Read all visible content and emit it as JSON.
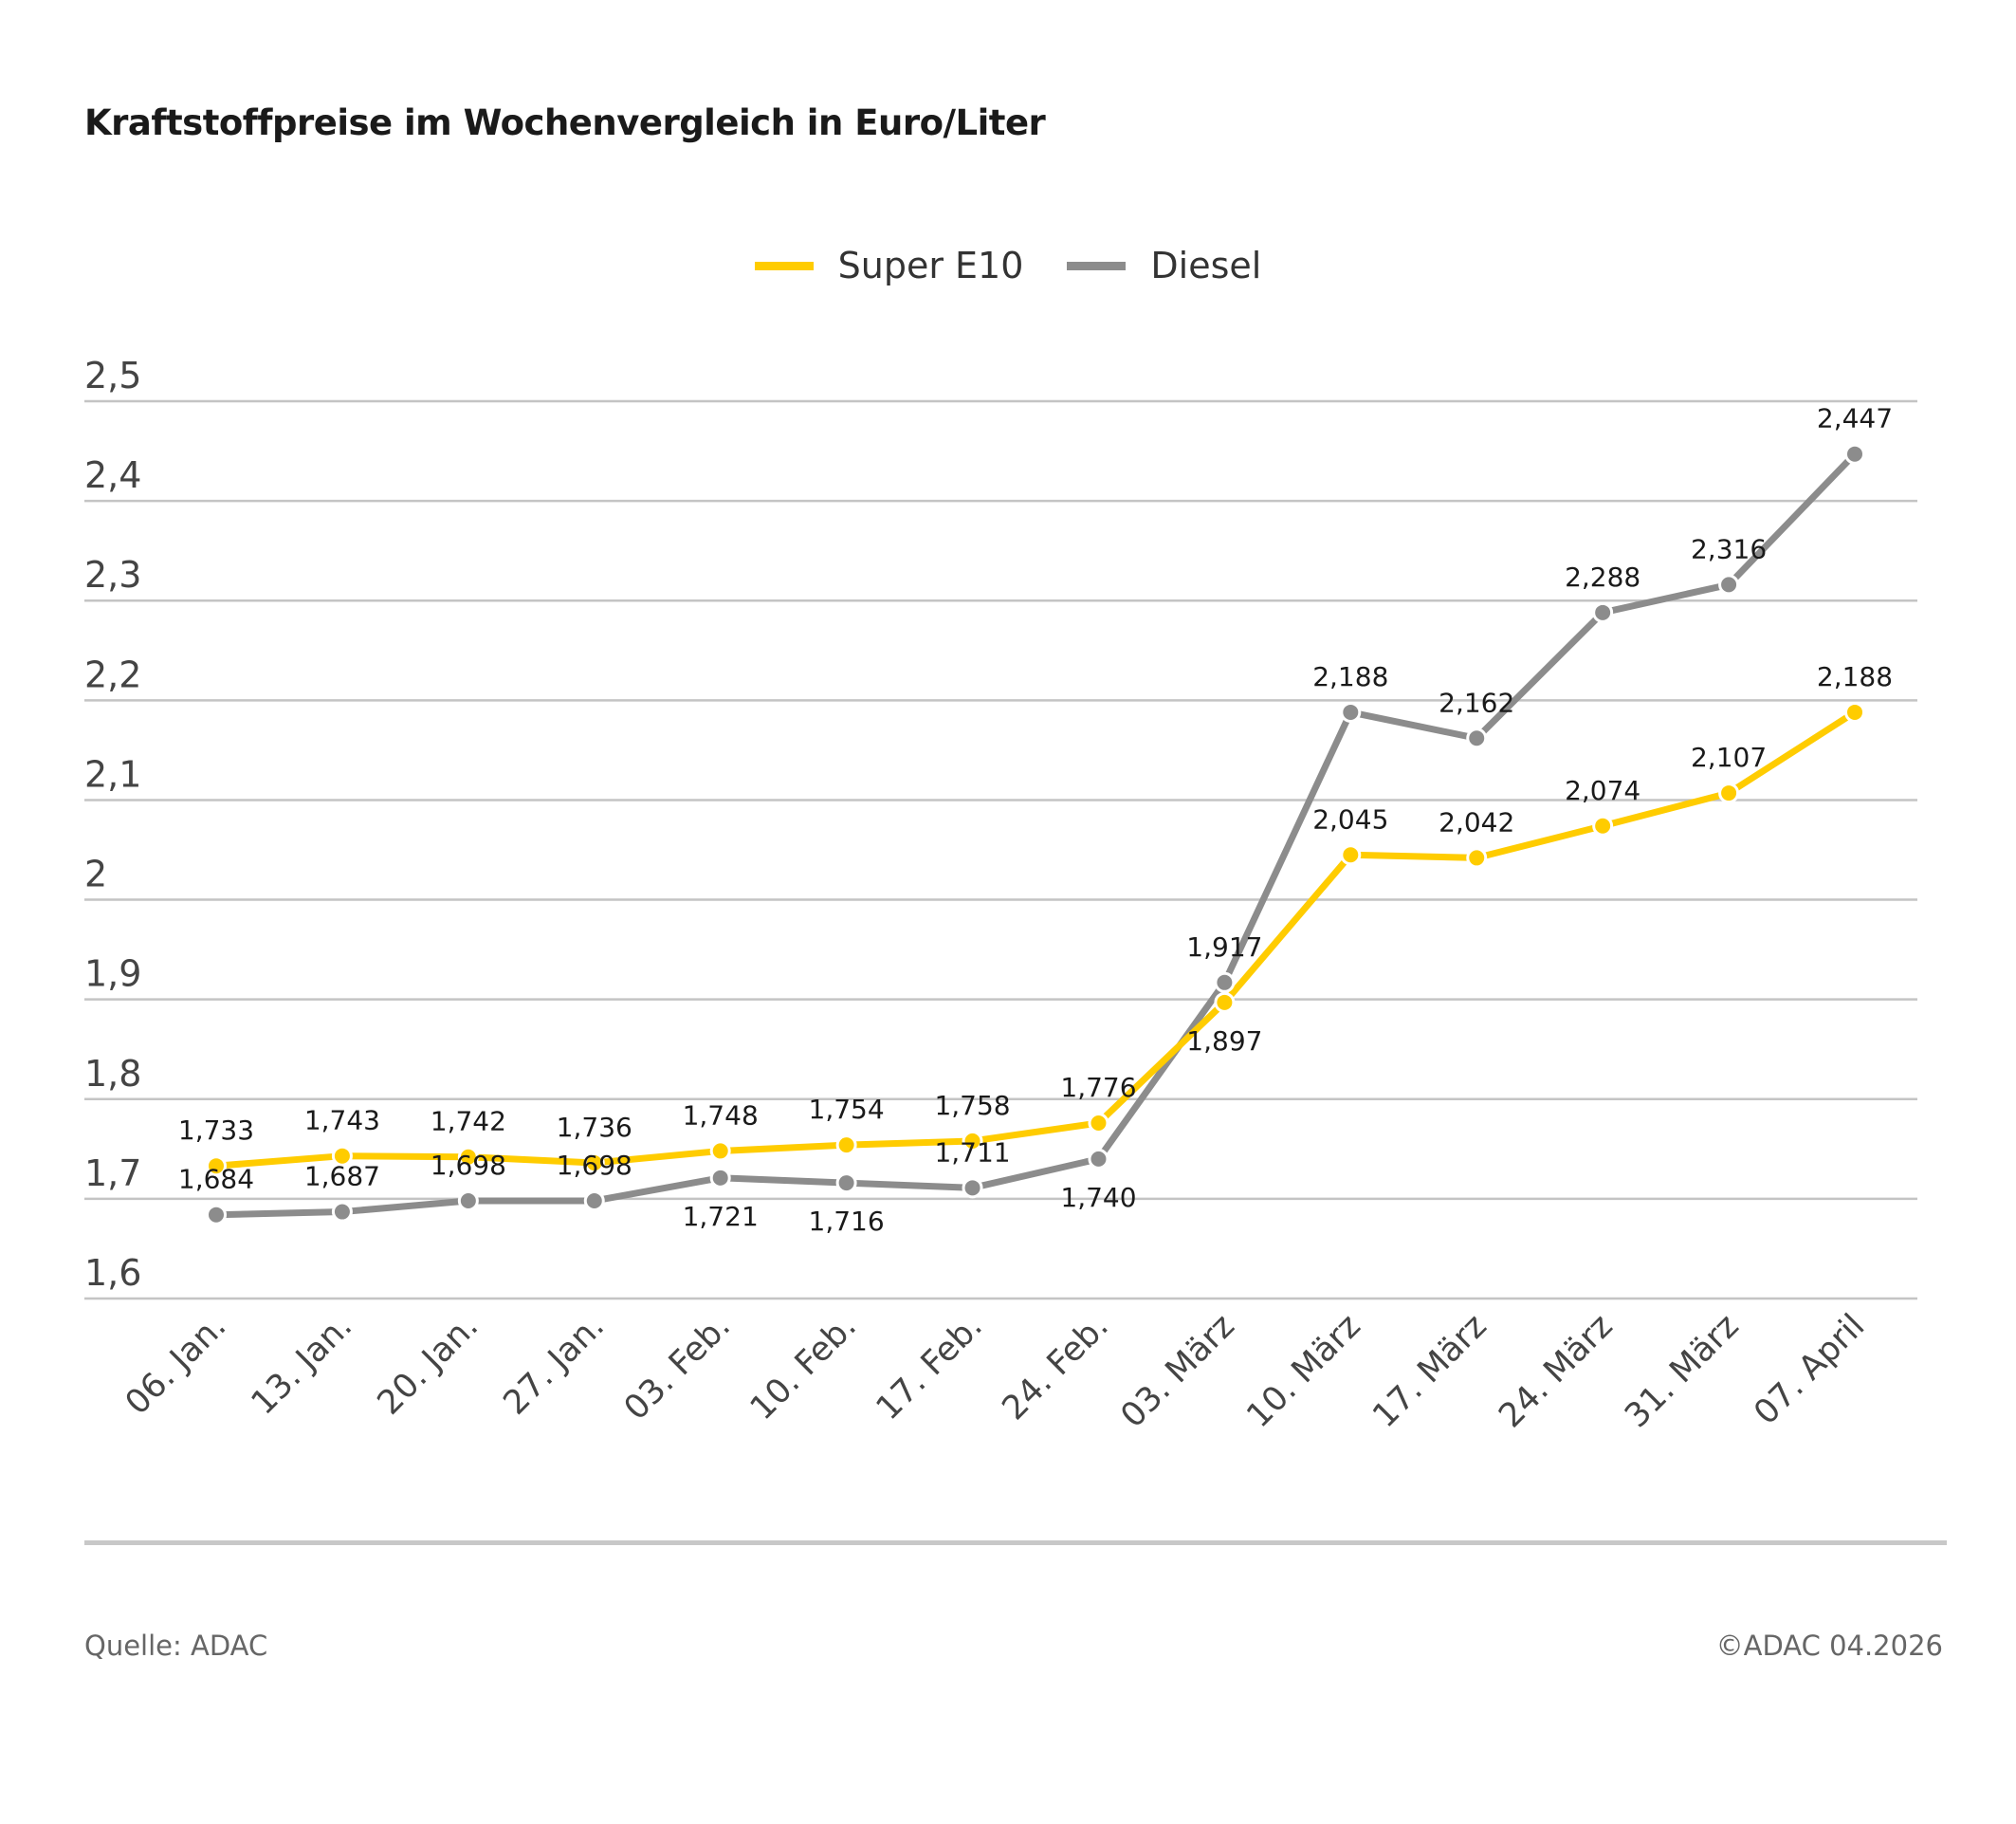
{
  "chart_data": {
    "type": "line",
    "title": "Kraftstoffpreise im Wochenvergleich in Euro/Liter",
    "categories": [
      "06. Jan.",
      "13. Jan.",
      "20. Jan.",
      "27. Jan.",
      "03. Feb.",
      "10. Feb.",
      "17. Feb.",
      "24. Feb.",
      "03. März",
      "10. März",
      "17. März",
      "24. März",
      "31. März",
      "07. April"
    ],
    "series": [
      {
        "name": "Super E10",
        "color": "#FFCC00",
        "values": [
          1.733,
          1.743,
          1.742,
          1.736,
          1.748,
          1.754,
          1.758,
          1.776,
          1.897,
          2.045,
          2.042,
          2.074,
          2.107,
          2.188
        ],
        "labels": [
          "1,733",
          "1,743",
          "1,742",
          "1,736",
          "1,748",
          "1,754",
          "1,758",
          "1,776",
          "1,897",
          "2,045",
          "2,042",
          "2,074",
          "2,107",
          "2,188"
        ]
      },
      {
        "name": "Diesel",
        "color": "#8C8C8C",
        "values": [
          1.684,
          1.687,
          1.698,
          1.698,
          1.721,
          1.716,
          1.711,
          1.74,
          1.917,
          2.188,
          2.162,
          2.288,
          2.316,
          2.447
        ],
        "labels": [
          "1,684",
          "1,687",
          "1,698",
          "1,698",
          "1,721",
          "1,716",
          "1,711",
          "1,740",
          "1,917",
          "2,188",
          "2,162",
          "2,288",
          "2,316",
          "2,447"
        ]
      }
    ],
    "ylim": [
      1.6,
      2.5
    ],
    "yticks": [
      1.6,
      1.7,
      1.8,
      1.9,
      2.0,
      2.1,
      2.2,
      2.3,
      2.4,
      2.5
    ],
    "ytick_labels": [
      "1,6",
      "1,7",
      "1,8",
      "1,9",
      "2",
      "2,1",
      "2,2",
      "2,3",
      "2,4",
      "2,5"
    ],
    "grid": true,
    "legend_position": "top-center",
    "xlabel": "",
    "ylabel": ""
  },
  "footer": {
    "source": "Quelle: ADAC",
    "copyright": "©ADAC 04.2026"
  }
}
